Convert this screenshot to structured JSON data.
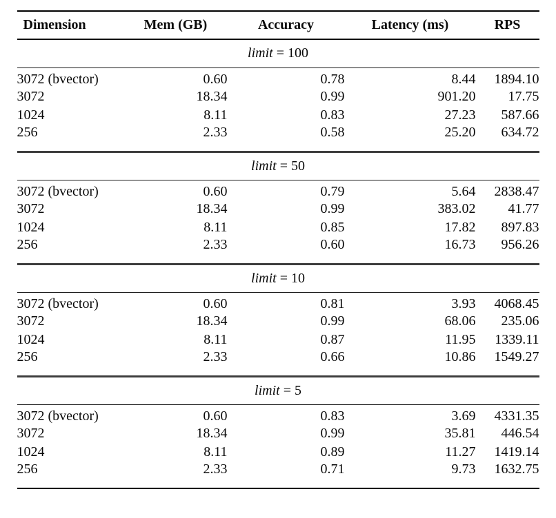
{
  "page": {
    "background": "#ffffff",
    "text_color": "#0a0a0a",
    "rule_color": "#000000",
    "section_separator_color": "#3d3d3d"
  },
  "table": {
    "columns": [
      {
        "label": "Dimension"
      },
      {
        "label": "Mem (GB)"
      },
      {
        "label": "Accuracy"
      },
      {
        "label": "Latency (ms)"
      },
      {
        "label": "RPS"
      }
    ],
    "sections": [
      {
        "limit_word": "limit",
        "limit_rest": " = 100",
        "rows": [
          [
            "3072 (bvector)",
            "0.60",
            "0.78",
            "8.44",
            "1894.10"
          ],
          [
            "3072",
            "18.34",
            "0.99",
            "901.20",
            "17.75"
          ],
          [
            "1024",
            "8.11",
            "0.83",
            "27.23",
            "587.66"
          ],
          [
            "256",
            "2.33",
            "0.58",
            "25.20",
            "634.72"
          ]
        ]
      },
      {
        "limit_word": "limit",
        "limit_rest": " = 50",
        "rows": [
          [
            "3072 (bvector)",
            "0.60",
            "0.79",
            "5.64",
            "2838.47"
          ],
          [
            "3072",
            "18.34",
            "0.99",
            "383.02",
            "41.77"
          ],
          [
            "1024",
            "8.11",
            "0.85",
            "17.82",
            "897.83"
          ],
          [
            "256",
            "2.33",
            "0.60",
            "16.73",
            "956.26"
          ]
        ]
      },
      {
        "limit_word": "limit",
        "limit_rest": " = 10",
        "rows": [
          [
            "3072 (bvector)",
            "0.60",
            "0.81",
            "3.93",
            "4068.45"
          ],
          [
            "3072",
            "18.34",
            "0.99",
            "68.06",
            "235.06"
          ],
          [
            "1024",
            "8.11",
            "0.87",
            "11.95",
            "1339.11"
          ],
          [
            "256",
            "2.33",
            "0.66",
            "10.86",
            "1549.27"
          ]
        ]
      },
      {
        "limit_word": "limit",
        "limit_rest": " = 5",
        "rows": [
          [
            "3072 (bvector)",
            "0.60",
            "0.83",
            "3.69",
            "4331.35"
          ],
          [
            "3072",
            "18.34",
            "0.99",
            "35.81",
            "446.54"
          ],
          [
            "1024",
            "8.11",
            "0.89",
            "11.27",
            "1419.14"
          ],
          [
            "256",
            "2.33",
            "0.71",
            "9.73",
            "1632.75"
          ]
        ]
      }
    ]
  }
}
